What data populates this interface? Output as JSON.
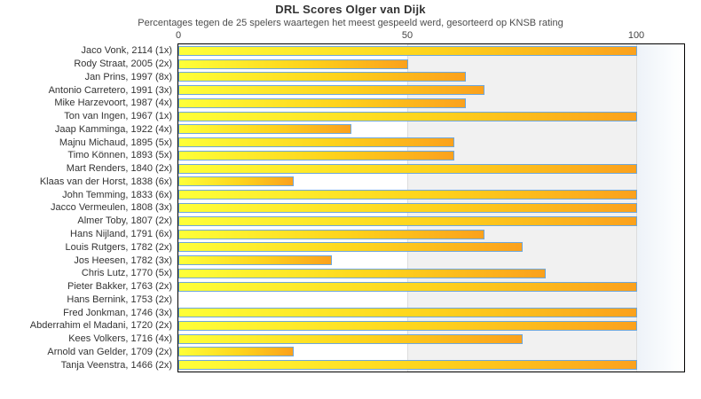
{
  "chart_data": {
    "type": "bar",
    "orientation": "horizontal",
    "title": "DRL Scores Olger van Dijk",
    "subtitle": "Percentages tegen de 25 spelers waartegen het meest gespeeld werd, gesorteerd op KNSB rating",
    "categories": [
      "Jaco Vonk, 2114 (1x)",
      "Rody Straat, 2005 (2x)",
      "Jan Prins, 1997 (8x)",
      "Antonio Carretero, 1991 (3x)",
      "Mike Harzevoort, 1987 (4x)",
      "Ton van Ingen, 1967 (1x)",
      "Jaap Kamminga, 1922 (4x)",
      "Majnu Michaud, 1895 (5x)",
      "Timo Können, 1893 (5x)",
      "Mart Renders, 1840 (2x)",
      "Klaas van der Horst, 1838 (6x)",
      "John Temming, 1833 (6x)",
      "Jacco Vermeulen, 1808 (3x)",
      "Almer Toby, 1807 (2x)",
      "Hans Nijland, 1791 (6x)",
      "Louis Rutgers, 1782 (2x)",
      "Jos Heesen, 1782 (3x)",
      "Chris Lutz, 1770 (5x)",
      "Pieter Bakker, 1763 (2x)",
      "Hans Bernink, 1753 (2x)",
      "Fred Jonkman, 1746 (3x)",
      "Abderrahim el Madani, 1720 (2x)",
      "Kees Volkers, 1716 (4x)",
      "Arnold van Gelder, 1709 (2x)",
      "Tanja Veenstra, 1466 (2x)"
    ],
    "values": [
      100,
      50,
      62.5,
      66.7,
      62.5,
      100,
      37.5,
      60,
      60,
      100,
      25,
      100,
      100,
      100,
      66.7,
      75,
      33.3,
      80,
      100,
      0,
      100,
      100,
      75,
      25,
      100
    ],
    "xlabel": "",
    "ylabel": "",
    "xlim": [
      0,
      110.7
    ],
    "xticks": [
      0,
      50,
      100
    ],
    "grid": true,
    "legend": false,
    "colors": {
      "bar_gradient_start": "#feff38",
      "bar_gradient_mid": "#fed31c",
      "bar_gradient_end": "#fba11d",
      "bar_border": "#6fa7da",
      "band_gray": "#f1f1f1",
      "gridline": "#dddddd",
      "plot_frame": "#000000",
      "title_text": "#333333",
      "subtitle_text": "#4d4d4d"
    }
  }
}
